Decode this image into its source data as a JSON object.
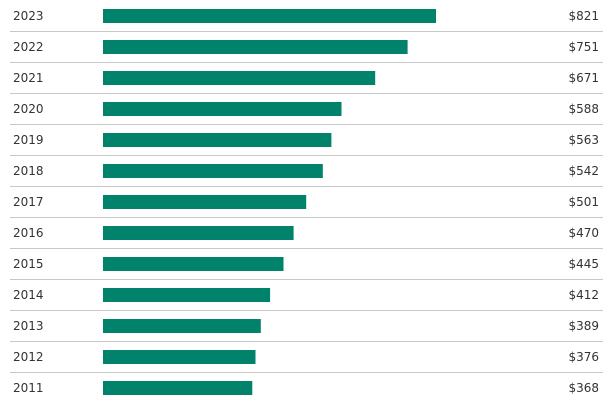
{
  "chart_data": {
    "type": "bar",
    "orientation": "horizontal",
    "categories": [
      "2023",
      "2022",
      "2021",
      "2020",
      "2019",
      "2018",
      "2017",
      "2016",
      "2015",
      "2014",
      "2013",
      "2012",
      "2011"
    ],
    "values": [
      821,
      751,
      671,
      588,
      563,
      542,
      501,
      470,
      445,
      412,
      389,
      376,
      368
    ],
    "value_labels": [
      "$821",
      "$751",
      "$671",
      "$588",
      "$563",
      "$542",
      "$501",
      "$470",
      "$445",
      "$412",
      "$389",
      "$376",
      "$368"
    ],
    "title": "",
    "xlabel": "",
    "ylabel": "",
    "xlim": [
      0,
      821
    ],
    "grid": false,
    "bar_color": "#00826b",
    "separator_color": "#c8c8c8"
  }
}
